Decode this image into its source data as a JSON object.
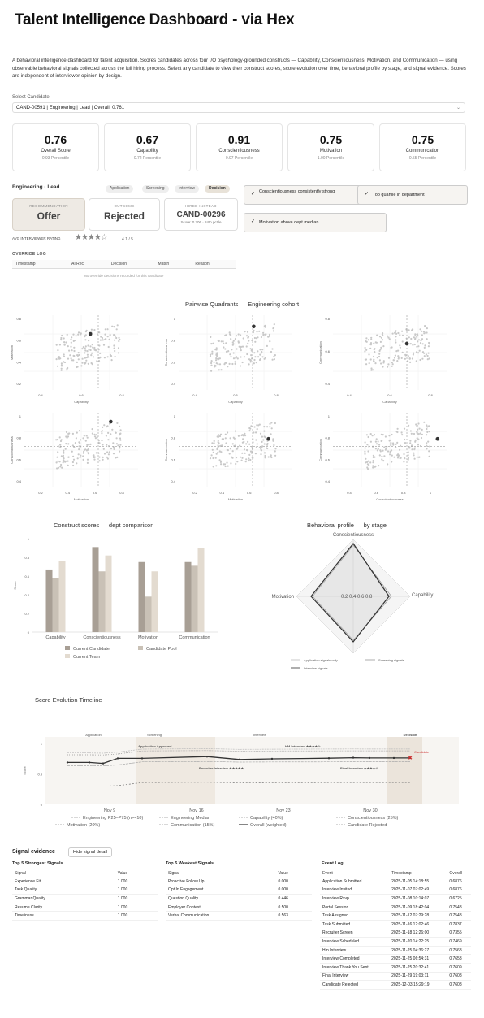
{
  "header": {
    "title": "Talent Intelligence Dashboard - via Hex",
    "intro": "A behavioral intelligence dashboard for talent acquisition. Scores candidates across four I/O psychology-grounded constructs — Capability, Conscientiousness, Motivation, and Communication — using observable behavioral signals collected across the full hiring process. Select any candidate to view their construct scores, score evolution over time, behavioral profile by stage, and signal evidence. Scores are independent of interviewer opinion by design."
  },
  "select": {
    "label": "Select Candidate",
    "value": "CAND-00591 | Engineering | Lead | Overall: 0.761",
    "chevron": "⌄"
  },
  "kpis": [
    {
      "value": "0.76",
      "label": "Overall Score",
      "pct": "0.93 Percentile"
    },
    {
      "value": "0.67",
      "label": "Capability",
      "pct": "0.72 Percentile"
    },
    {
      "value": "0.91",
      "label": "Conscientiousness",
      "pct": "0.97 Percentile"
    },
    {
      "value": "0.75",
      "label": "Motivation",
      "pct": "1.00 Percentile"
    },
    {
      "value": "0.75",
      "label": "Communication",
      "pct": "0.55 Percentile"
    }
  ],
  "role": "Engineering · Lead",
  "stages": [
    "Application",
    "Screening",
    "Interview",
    "Decision"
  ],
  "cards": {
    "rec": {
      "h": "RECOMMENDATION",
      "b": "Offer"
    },
    "out": {
      "h": "OUTCOME",
      "b": "Rejected"
    },
    "hired": {
      "h": "HIRED INSTEAD",
      "b": "CAND-00296",
      "s": "Score: 0.706 · 84th pctile"
    }
  },
  "signals": [
    "Conscientiousness consistently strong",
    "Top quartile in department",
    "Motivation above dept median"
  ],
  "check": "✓",
  "rating": {
    "label": "AVG INTERVIEWER RATING",
    "stars": "★★★★☆",
    "value": "4.1 / 5"
  },
  "override": {
    "title": "OVERRIDE LOG",
    "cols": [
      "Timestamp",
      "AI Rec",
      "Decision",
      "Match",
      "Reason"
    ],
    "empty": "No override decisions recorded for this candidate"
  },
  "quadrants": {
    "title": "Pairwise Quadrants — Engineering cohort",
    "panels": [
      {
        "x": "Capability",
        "y": "Motivation",
        "xt": [
          "0.4",
          "0.6",
          "0.8"
        ],
        "yt": [
          "0.8",
          "0.6",
          "0.4",
          "0.2"
        ]
      },
      {
        "x": "Capability",
        "y": "Conscientiousness",
        "xt": [
          "0.4",
          "0.6",
          "0.8"
        ],
        "yt": [
          "1",
          "0.8",
          "0.6",
          "0.4"
        ]
      },
      {
        "x": "Capability",
        "y": "Communication",
        "xt": [
          "0.4",
          "0.6",
          "0.8"
        ],
        "yt": [
          "0.8",
          "0.6",
          "0.4"
        ]
      },
      {
        "x": "Motivation",
        "y": "Conscientiousness",
        "xt": [
          "0.2",
          "0.4",
          "0.6",
          "0.8"
        ],
        "yt": [
          "1",
          "0.8",
          "0.6",
          "0.4"
        ]
      },
      {
        "x": "Motivation",
        "y": "Communication",
        "xt": [
          "0.2",
          "0.4",
          "0.6",
          "0.8"
        ],
        "yt": [
          "1",
          "0.8",
          "0.6",
          "0.4"
        ]
      },
      {
        "x": "Conscientiousness",
        "y": "Communication",
        "xt": [
          "0.4",
          "0.6",
          "0.8",
          "1"
        ],
        "yt": [
          "1",
          "0.8",
          "0.6",
          "0.4"
        ]
      }
    ]
  },
  "chart_data": [
    {
      "type": "bar",
      "title": "Construct scores — dept comparison",
      "ylabel": "Score",
      "ylim": [
        0,
        1
      ],
      "yticks": [
        "1",
        "0.8",
        "0.6",
        "0.4",
        "0.2",
        "0"
      ],
      "categories": [
        "Capability",
        "Conscientiousness",
        "Motivation",
        "Communication"
      ],
      "series": [
        {
          "name": "Current Candidate",
          "values": [
            0.67,
            0.91,
            0.75,
            0.75
          ],
          "color": "#a89f95"
        },
        {
          "name": "Candidate Pool",
          "values": [
            0.58,
            0.65,
            0.38,
            0.71
          ],
          "color": "#c9c1b6"
        },
        {
          "name": "Current Team",
          "values": [
            0.76,
            0.82,
            0.65,
            0.9
          ],
          "color": "#e3dbd0"
        }
      ]
    },
    {
      "type": "radar",
      "title": "Behavioral profile — by stage",
      "axes": [
        "Conscientiousness",
        "Capability",
        "Motivation"
      ],
      "rticks": [
        "0.2",
        "0.4",
        "0.6",
        "0.8"
      ],
      "series": [
        {
          "name": "Application signals only"
        },
        {
          "name": "Screening signals"
        },
        {
          "name": "Interview signals"
        }
      ]
    },
    {
      "type": "line",
      "title": "Score Evolution Timeline",
      "ylabel": "Score",
      "xticks": [
        "Nov 9",
        "Nov 16",
        "Nov 23",
        "Nov 30"
      ],
      "yticks": [
        "1",
        "0.5",
        "0"
      ],
      "stages": [
        "Application",
        "Screening",
        "Interview",
        "Decision"
      ],
      "annotations": [
        "Application Approved",
        "HM Interview ★★★★☆",
        "Recruiter Interview ★★★★★",
        "Final Interview ★★★☆☆",
        "Candidate"
      ],
      "legend": [
        "Engineering P25–P75 (n>=10)",
        "Engineering Median",
        "Capability (40%)",
        "Conscientiousness (25%)",
        "Motivation (20%)",
        "Communication (15%)",
        "Overall (weighted)",
        "Candidate Rejected"
      ]
    }
  ],
  "evidence": {
    "title": "Signal evidence",
    "button": "Hide signal detail",
    "strong": {
      "title": "Top 5 Strongest Signals",
      "cols": [
        "Signal",
        "Value"
      ],
      "rows": [
        [
          "Experience Fit",
          "1.000"
        ],
        [
          "Task Quality",
          "1.000"
        ],
        [
          "Grammar Quality",
          "1.000"
        ],
        [
          "Resume Clarity",
          "1.000"
        ],
        [
          "Timeliness",
          "1.000"
        ]
      ]
    },
    "weak": {
      "title": "Top 5 Weakest Signals",
      "cols": [
        "Signal",
        "Value"
      ],
      "rows": [
        [
          "Proactive Follow Up",
          "0.000"
        ],
        [
          "Opt In Engagement",
          "0.000"
        ],
        [
          "Question Quality",
          "0.446"
        ],
        [
          "Employer Context",
          "0.500"
        ],
        [
          "Verbal Communication",
          "0.563"
        ]
      ]
    },
    "log": {
      "title": "Event Log",
      "cols": [
        "Event",
        "Timestamp",
        "Overall"
      ],
      "rows": [
        [
          "Application Submitted",
          "2025-11-05 14:18:55",
          "0.6876"
        ],
        [
          "Interview Invited",
          "2025-11-07 07:02:49",
          "0.6876"
        ],
        [
          "Interview Rsvp",
          "2025-11-08 10:14:07",
          "0.6725"
        ],
        [
          "Portal Session",
          "2025-11-09 18:42:04",
          "0.7548"
        ],
        [
          "Task Assigned",
          "2025-11-12 07:29:28",
          "0.7548"
        ],
        [
          "Task Submitted",
          "2025-11-16 12:02:46",
          "0.7837"
        ],
        [
          "Recruiter Screen",
          "2025-11-18 12:26:00",
          "0.7355"
        ],
        [
          "Interview Scheduled",
          "2025-11-20 14:22:25",
          "0.7469"
        ],
        [
          "Hm Interview",
          "2025-11-25 04:36:27",
          "0.7568"
        ],
        [
          "Interview Completed",
          "2025-11-25 06:54:31",
          "0.7653"
        ],
        [
          "Interview Thank You Sent",
          "2025-11-25 20:32:41",
          "0.7609"
        ],
        [
          "Final Interview",
          "2025-11-29 19:03:11",
          "0.7608"
        ],
        [
          "Candidate Rejected",
          "2025-12-03 15:29:19",
          "0.7608"
        ]
      ]
    }
  }
}
